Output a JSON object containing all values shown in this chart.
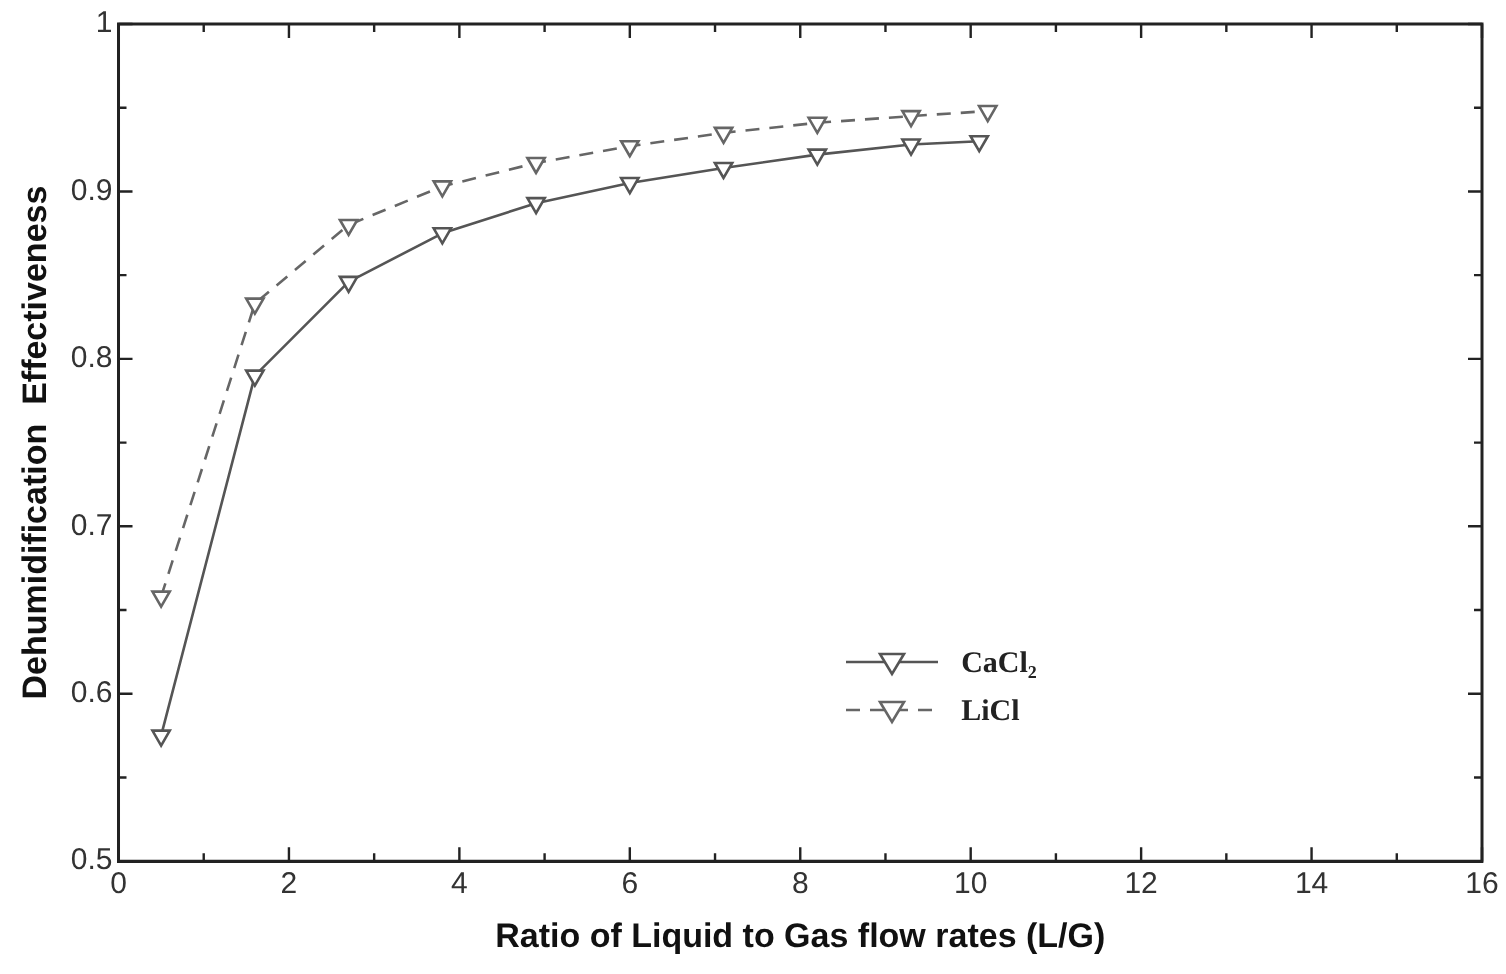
{
  "chart_data": {
    "type": "line",
    "xlabel": "Ratio of Liquid to Gas flow rates (L/G)",
    "ylabel": "Dehumidification  Effectiveness",
    "xlim": [
      0,
      16
    ],
    "xticks": [
      0,
      {
        "value": 1,
        "label": null
      },
      2,
      {
        "value": 3,
        "label": null
      },
      4,
      {
        "value": 5,
        "label": null
      },
      6,
      {
        "value": 7,
        "label": null
      },
      8,
      {
        "value": 9,
        "label": null
      },
      10,
      {
        "value": 11,
        "label": null
      },
      12,
      {
        "value": 13,
        "label": null
      },
      14,
      {
        "value": 15,
        "label": null
      },
      16
    ],
    "ylim": [
      0.5,
      1
    ],
    "yticks": [
      0.5,
      {
        "value": 0.55,
        "label": null
      },
      0.6,
      {
        "value": 0.65,
        "label": null
      },
      0.7,
      {
        "value": 0.75,
        "label": null
      },
      0.8,
      {
        "value": 0.85,
        "label": null
      },
      0.9,
      {
        "value": 0.95,
        "label": null
      },
      1
    ],
    "grid": false,
    "legend": "bottom right",
    "marker": "triangle",
    "series": [
      {
        "name": "CaCl₂",
        "color": "#555555",
        "line_style": "solid",
        "x": [
          0.5,
          1.6,
          2.7,
          3.8,
          4.9,
          6.0,
          7.1,
          8.2,
          9.3,
          10.1
        ],
        "values": [
          0.575,
          0.79,
          0.846,
          0.875,
          0.893,
          0.905,
          0.914,
          0.922,
          0.928,
          0.93
        ]
      },
      {
        "name": "LiCl",
        "color": "#666666",
        "line_style": "dashed",
        "x": [
          0.5,
          1.6,
          2.7,
          3.8,
          4.9,
          6.0,
          7.1,
          8.2,
          9.3,
          10.2
        ],
        "values": [
          0.658,
          0.833,
          0.88,
          0.903,
          0.917,
          0.927,
          0.935,
          0.941,
          0.945,
          0.948
        ]
      }
    ]
  }
}
